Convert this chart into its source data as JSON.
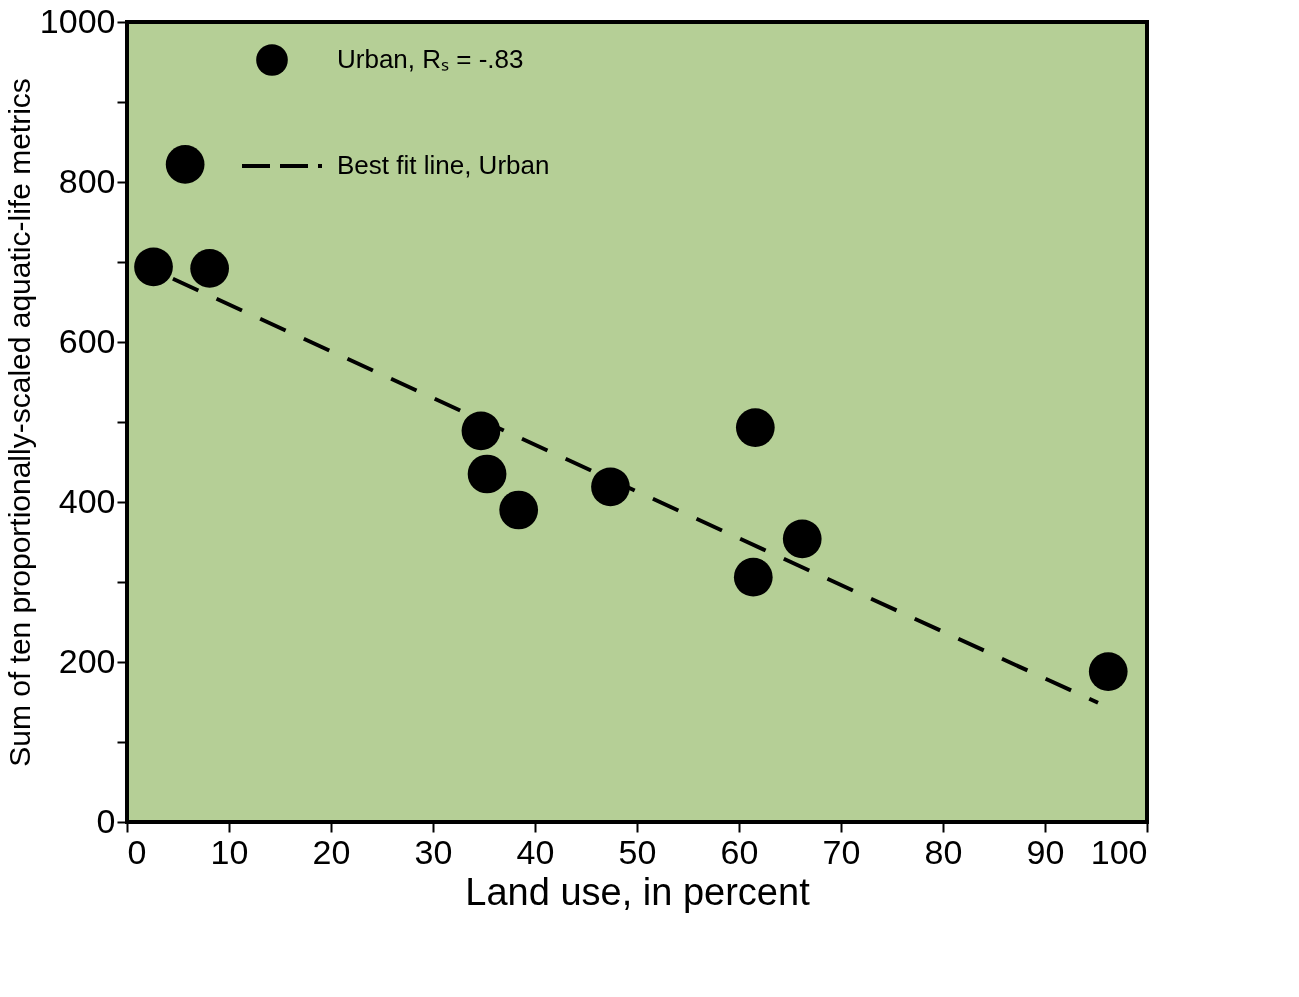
{
  "chart_data": {
    "type": "scatter",
    "xlabel": "Land use, in percent",
    "ylabel": "Sum of ten proportionally-scaled aquatic-life metrics",
    "xlim": [
      0,
      100
    ],
    "xticks": [
      0,
      10,
      20,
      30,
      40,
      50,
      60,
      70,
      80,
      90,
      100
    ],
    "ylim": [
      0,
      1000
    ],
    "yticks": [
      0,
      {
        "value": 100,
        "label": null
      },
      200,
      {
        "value": 300,
        "label": null
      },
      400,
      {
        "value": 500,
        "label": null
      },
      600,
      {
        "value": 700,
        "label": null
      },
      800,
      {
        "value": 900,
        "label": null
      },
      1000
    ],
    "grid": false,
    "legend": "top left",
    "series": [
      {
        "name": "Urban,    Rₛ = -.83",
        "color": "#000000",
        "marker": "circle",
        "x": [
          2.6,
          5.7,
          8.1,
          34.7,
          35.3,
          38.4,
          47.4,
          61.6,
          61.4,
          66.2,
          96.2
        ],
        "values": [
          694,
          822,
          692,
          489,
          435,
          390,
          419,
          493,
          306,
          354,
          188
        ]
      },
      {
        "name": "Best fit line, Urban",
        "color": "#000000",
        "type": "line",
        "line_style": "dashed",
        "x": [
          4.5,
          95.2
        ],
        "values": [
          679,
          149
        ]
      }
    ]
  }
}
